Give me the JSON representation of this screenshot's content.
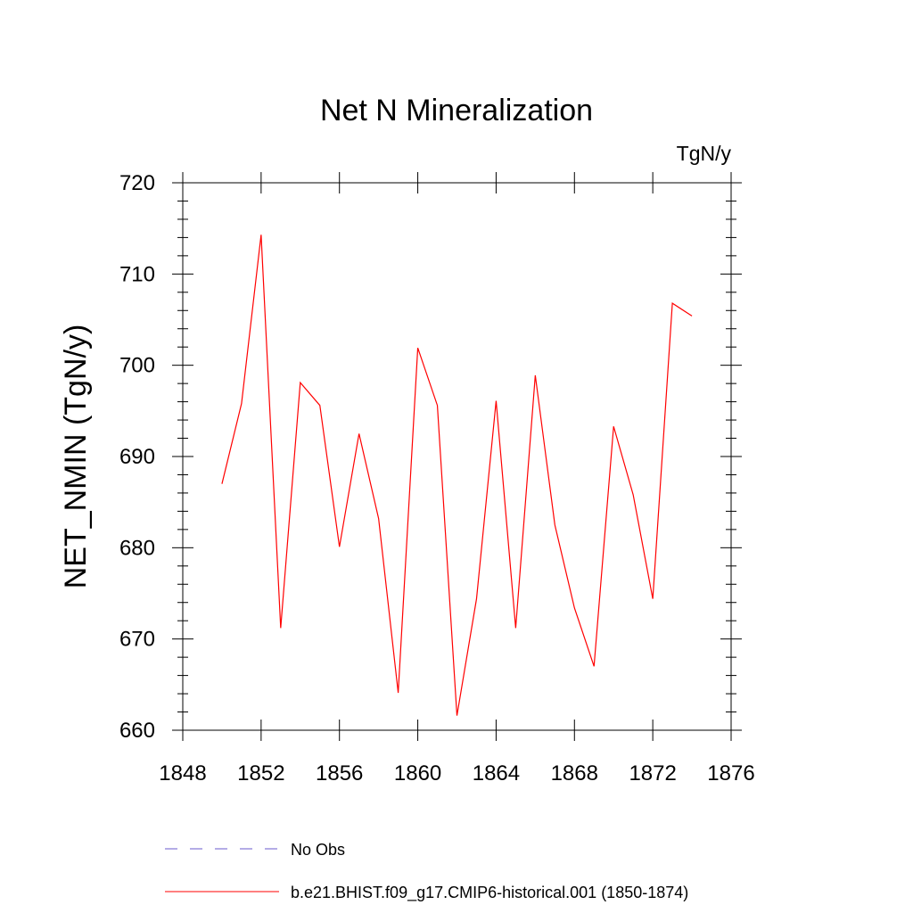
{
  "chart_data": {
    "type": "line",
    "title": "Net N Mineralization",
    "units": "TgN/y",
    "ylabel": "NET_NMIN  (TgN/y)",
    "xlabel": "",
    "xlim": [
      1848,
      1876
    ],
    "ylim": [
      660,
      720
    ],
    "x_ticks": [
      1848,
      1852,
      1856,
      1860,
      1864,
      1868,
      1872,
      1876
    ],
    "y_ticks": [
      660,
      670,
      680,
      690,
      700,
      710,
      720
    ],
    "grid": false,
    "legend_position": "bottom",
    "series": [
      {
        "name": "b.e21.BHIST.f09_g17.CMIP6-historical.001 (1850-1874)",
        "color": "#ff0000",
        "line_style": "solid",
        "x": [
          1850,
          1851,
          1852,
          1853,
          1854,
          1855,
          1856,
          1857,
          1858,
          1859,
          1860,
          1861,
          1862,
          1863,
          1864,
          1865,
          1866,
          1867,
          1868,
          1869,
          1870,
          1871,
          1872,
          1873,
          1874
        ],
        "y": [
          687.0,
          695.8,
          714.3,
          671.2,
          698.1,
          695.6,
          680.1,
          692.5,
          683.2,
          664.1,
          701.9,
          695.6,
          661.6,
          674.4,
          696.1,
          671.2,
          698.9,
          682.5,
          673.4,
          667.0,
          693.3,
          685.8,
          674.4,
          706.8,
          705.4
        ]
      }
    ],
    "legend": [
      {
        "label": "No Obs",
        "color": "#6a5acd",
        "line_style": "dashed"
      },
      {
        "label": "b.e21.BHIST.f09_g17.CMIP6-historical.001 (1850-1874)",
        "color": "#ff0000",
        "line_style": "solid"
      }
    ]
  }
}
